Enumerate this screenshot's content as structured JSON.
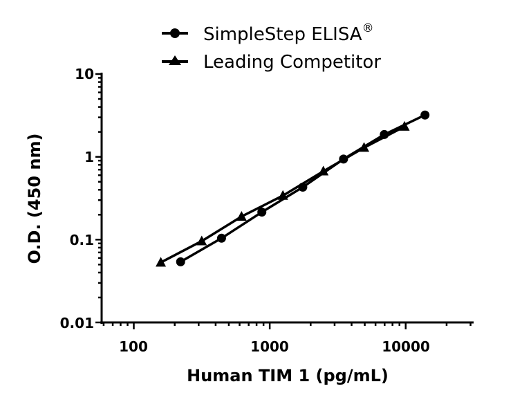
{
  "chart_data": {
    "type": "line",
    "title": "",
    "xlabel": "Human TIM 1 (pg/mL)",
    "ylabel": "O.D. (450 nm)",
    "xscale": "log",
    "yscale": "log",
    "xlim": [
      58,
      31600
    ],
    "ylim": [
      0.01,
      10
    ],
    "x_ticks": [
      "100",
      "1000",
      "10000"
    ],
    "y_ticks": [
      "0.01",
      "0.1",
      "1",
      "10"
    ],
    "grid": false,
    "legend_position": "top-center",
    "series": [
      {
        "name": "SimpleStep ELISA®",
        "marker": "circle",
        "x": [
          221,
          442,
          875,
          1750,
          3490,
          6960,
          13870
        ],
        "y": [
          0.054,
          0.104,
          0.215,
          0.43,
          0.94,
          1.86,
          3.2
        ]
      },
      {
        "name": "Leading Competitor",
        "marker": "triangle",
        "x": [
          158,
          316,
          620,
          1250,
          2480,
          4940,
          9800
        ],
        "y": [
          0.053,
          0.096,
          0.19,
          0.34,
          0.67,
          1.29,
          2.32
        ]
      }
    ]
  },
  "legend": {
    "items": [
      {
        "label": "SimpleStep ELISA",
        "superscript": "®"
      },
      {
        "label": "Leading Competitor",
        "superscript": ""
      }
    ]
  },
  "axes": {
    "x_title": "Human TIM 1 (pg/mL)",
    "y_title": "O.D. (450 nm)",
    "x_tick_labels": [
      "100",
      "1000",
      "10000"
    ],
    "y_tick_labels": [
      "10",
      "1",
      "0.1",
      "0.01"
    ]
  }
}
